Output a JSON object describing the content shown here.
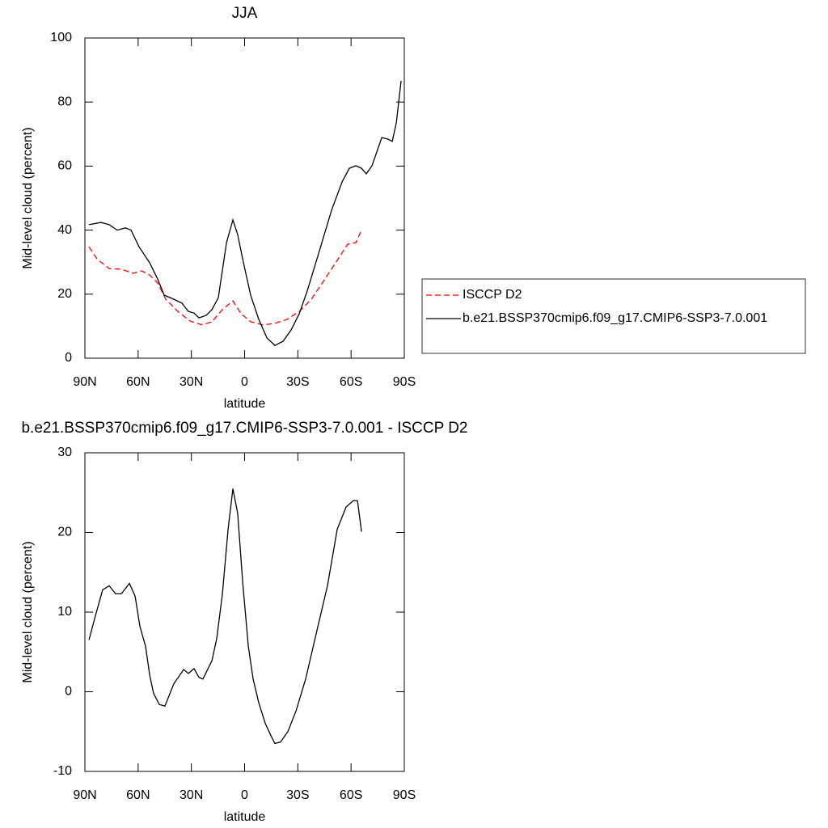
{
  "chart_data": [
    {
      "type": "line",
      "title": "JJA",
      "xlabel": "latitude",
      "ylabel": "Mid-level cloud (percent)",
      "xlim": [
        90,
        -90
      ],
      "ylim": [
        0,
        100
      ],
      "xticks": [
        {
          "value": 90,
          "label": "90N"
        },
        {
          "value": 60,
          "label": "60N"
        },
        {
          "value": 30,
          "label": "30N"
        },
        0,
        {
          "value": -30,
          "label": "30S"
        },
        {
          "value": -60,
          "label": "60S"
        },
        {
          "value": -90,
          "label": "90S"
        }
      ],
      "yticks": [
        0,
        20,
        40,
        60,
        80,
        100
      ],
      "legend": "right",
      "series": [
        {
          "name": "ISCCP D2",
          "color": "#ff0000",
          "style": "dashed",
          "x": [
            87.7,
            83.2,
            76.3,
            69.5,
            62.7,
            58.1,
            53.5,
            49.0,
            44.4,
            37.6,
            30.7,
            23.9,
            18.4,
            12.5,
            6.6,
            2.0,
            -3.4,
            -10.3,
            -17.1,
            -23.9,
            -30.8,
            -37.6,
            -44.4,
            -51.3,
            -58.1,
            -62.7,
            -65.9
          ],
          "values": [
            34.8,
            31.0,
            28.0,
            27.8,
            26.5,
            27.3,
            26.0,
            23.5,
            18.4,
            14.6,
            11.6,
            10.4,
            11.4,
            15.2,
            17.9,
            13.9,
            11.4,
            10.4,
            10.9,
            12.1,
            14.6,
            18.4,
            24.0,
            29.8,
            35.6,
            36.1,
            40.0
          ]
        },
        {
          "name": "b.e21.BSSP370cmip6.f09_g17.CMIP6-SSP3-7.0.001",
          "color": "#000000",
          "style": "solid",
          "x": [
            87.7,
            80.9,
            76.3,
            71.8,
            67.2,
            64.0,
            59.5,
            53.5,
            49.0,
            45.3,
            39.9,
            35.3,
            31.7,
            28.5,
            25.7,
            21.6,
            18.4,
            14.8,
            10.2,
            6.6,
            3.9,
            1.1,
            -3.4,
            -8.0,
            -12.6,
            -17.1,
            -21.7,
            -26.2,
            -30.8,
            -35.3,
            -42.2,
            -49.0,
            -54.9,
            -59.0,
            -62.7,
            -65.9,
            -68.6,
            -71.8,
            -77.3,
            -80.9,
            -83.2,
            -85.5,
            -88.2
          ],
          "values": [
            41.7,
            42.4,
            41.7,
            40.0,
            40.7,
            40.0,
            34.8,
            29.8,
            24.7,
            19.7,
            18.4,
            17.2,
            14.6,
            14.1,
            12.6,
            13.4,
            15.2,
            18.9,
            36.1,
            43.2,
            38.6,
            31.0,
            19.7,
            12.1,
            6.3,
            4.0,
            5.3,
            8.8,
            13.9,
            21.0,
            33.6,
            46.2,
            55.0,
            59.3,
            60.1,
            59.3,
            57.6,
            60.1,
            68.9,
            68.4,
            67.7,
            73.5,
            86.6
          ]
        }
      ]
    },
    {
      "type": "line",
      "title": "b.e21.BSSP370cmip6.f09_g17.CMIP6-SSP3-7.0.001 - ISCCP D2",
      "xlabel": "latitude",
      "ylabel": "Mid-level cloud (percent)",
      "xlim": [
        90,
        -90
      ],
      "ylim": [
        -10,
        30
      ],
      "xticks": [
        {
          "value": 90,
          "label": "90N"
        },
        {
          "value": 60,
          "label": "60N"
        },
        {
          "value": 30,
          "label": "30N"
        },
        0,
        {
          "value": -30,
          "label": "30S"
        },
        {
          "value": -60,
          "label": "60S"
        },
        {
          "value": -90,
          "label": "90S"
        }
      ],
      "yticks": [
        -10,
        0,
        10,
        20,
        30
      ],
      "series": [
        {
          "color": "#000000",
          "style": "solid",
          "x": [
            87.7,
            84.5,
            80.0,
            76.3,
            72.7,
            69.5,
            64.9,
            61.7,
            59.0,
            55.8,
            53.5,
            51.3,
            48.1,
            44.9,
            39.9,
            34.3,
            31.7,
            28.5,
            25.7,
            23.5,
            18.4,
            15.7,
            12.5,
            9.3,
            6.6,
            3.9,
            1.1,
            -2.1,
            -4.8,
            -8.0,
            -11.7,
            -14.8,
            -17.1,
            -20.3,
            -24.4,
            -29.0,
            -34.4,
            -41.3,
            -46.7,
            -52.2,
            -57.2,
            -61.3,
            -63.6,
            -65.9
          ],
          "values": [
            6.5,
            9.2,
            12.8,
            13.3,
            12.3,
            12.3,
            13.6,
            12.0,
            8.2,
            5.7,
            2.1,
            -0.2,
            -1.6,
            -1.8,
            1.0,
            2.8,
            2.3,
            2.9,
            1.8,
            1.6,
            3.9,
            6.7,
            12.3,
            20.4,
            25.5,
            22.4,
            13.8,
            5.7,
            1.6,
            -1.4,
            -4.0,
            -5.5,
            -6.5,
            -6.3,
            -5.0,
            -2.4,
            1.6,
            8.2,
            13.3,
            20.4,
            23.2,
            24.0,
            24.0,
            20.1
          ]
        }
      ]
    }
  ]
}
